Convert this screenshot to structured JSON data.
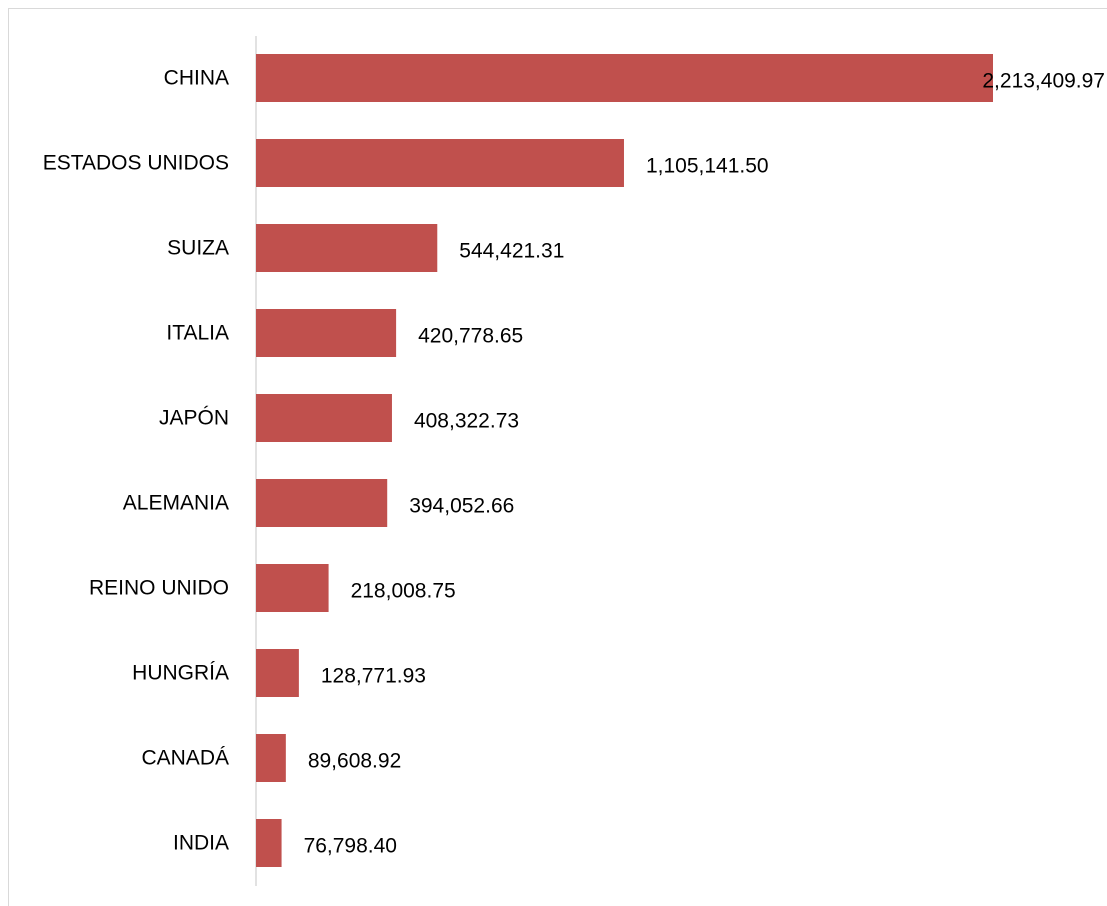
{
  "chart_data": {
    "type": "bar",
    "orientation": "horizontal",
    "categories": [
      "CHINA",
      "ESTADOS UNIDOS",
      "SUIZA",
      "ITALIA",
      "JAPÓN",
      "ALEMANIA",
      "REINO UNIDO",
      "HUNGRÍA",
      "CANADÁ",
      "INDIA"
    ],
    "values": [
      2213409.97,
      1105141.5,
      544421.31,
      420778.65,
      408322.73,
      394052.66,
      218008.75,
      128771.93,
      89608.92,
      76798.4
    ],
    "data_labels": [
      "2,213,409.97",
      "1,105,141.50",
      "544,421.31",
      "420,778.65",
      "408,322.73",
      "394,052.66",
      "218,008.75",
      "128,771.93",
      "89,608.92",
      "76,798.40"
    ],
    "title": "",
    "xlabel": "",
    "ylabel": "",
    "xlim": [
      0,
      2213409.97
    ],
    "grid": false,
    "legend": "none",
    "bar_color": "#c0504d",
    "axis_color": "#d9d9d9"
  }
}
